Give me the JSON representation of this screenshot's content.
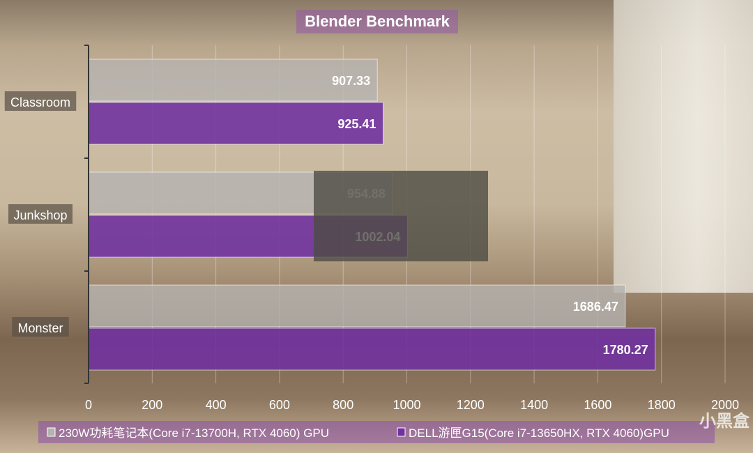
{
  "chart_data": {
    "type": "bar",
    "orientation": "horizontal",
    "title": "Blender Benchmark",
    "categories": [
      "Classroom",
      "Junkshop",
      "Monster"
    ],
    "series": [
      {
        "name": "230W功耗笔记本(Core i7-13700H, RTX 4060) GPU",
        "values": [
          907.33,
          954.88,
          1686.47
        ],
        "color": "#b5b3b0"
      },
      {
        "name": "DELL游匣G15(Core i7-13650HX, RTX 4060)GPU",
        "values": [
          925.41,
          1002.04,
          1780.27
        ],
        "color": "#7030a0"
      }
    ],
    "xlim": [
      0,
      2000
    ],
    "xticks": [
      "0",
      "200",
      "400",
      "600",
      "800",
      "1000",
      "1200",
      "1400",
      "1600",
      "1800",
      "2000"
    ],
    "grid": true,
    "legend": "bottom"
  },
  "watermark": "小黑盒"
}
